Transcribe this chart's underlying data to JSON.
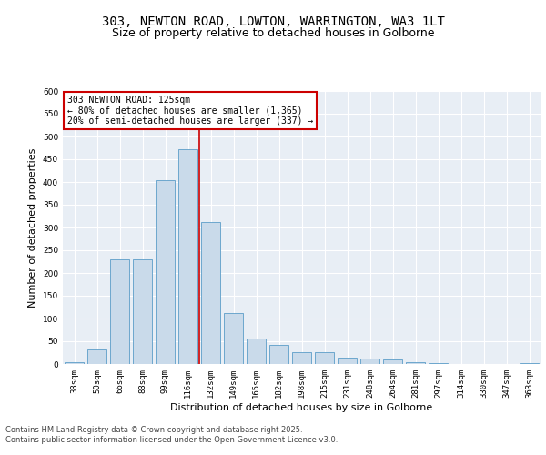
{
  "title_line1": "303, NEWTON ROAD, LOWTON, WARRINGTON, WA3 1LT",
  "title_line2": "Size of property relative to detached houses in Golborne",
  "xlabel": "Distribution of detached houses by size in Golborne",
  "ylabel": "Number of detached properties",
  "bar_color": "#c9daea",
  "bar_edge_color": "#5b9dc8",
  "categories": [
    "33sqm",
    "50sqm",
    "66sqm",
    "83sqm",
    "99sqm",
    "116sqm",
    "132sqm",
    "149sqm",
    "165sqm",
    "182sqm",
    "198sqm",
    "215sqm",
    "231sqm",
    "248sqm",
    "264sqm",
    "281sqm",
    "297sqm",
    "314sqm",
    "330sqm",
    "347sqm",
    "363sqm"
  ],
  "values": [
    5,
    33,
    230,
    230,
    405,
    472,
    312,
    112,
    57,
    42,
    27,
    27,
    15,
    13,
    10,
    5,
    3,
    0,
    0,
    0,
    2
  ],
  "vline_x": 5.5,
  "vline_color": "#cc0000",
  "annotation_text": "303 NEWTON ROAD: 125sqm\n← 80% of detached houses are smaller (1,365)\n20% of semi-detached houses are larger (337) →",
  "annotation_box_color": "#ffffff",
  "annotation_box_edge": "#cc0000",
  "ylim": [
    0,
    600
  ],
  "yticks": [
    0,
    50,
    100,
    150,
    200,
    250,
    300,
    350,
    400,
    450,
    500,
    550,
    600
  ],
  "background_color": "#e8eef5",
  "footer_text": "Contains HM Land Registry data © Crown copyright and database right 2025.\nContains public sector information licensed under the Open Government Licence v3.0.",
  "title_fontsize": 10,
  "subtitle_fontsize": 9,
  "tick_fontsize": 6.5,
  "label_fontsize": 8,
  "annot_fontsize": 7
}
